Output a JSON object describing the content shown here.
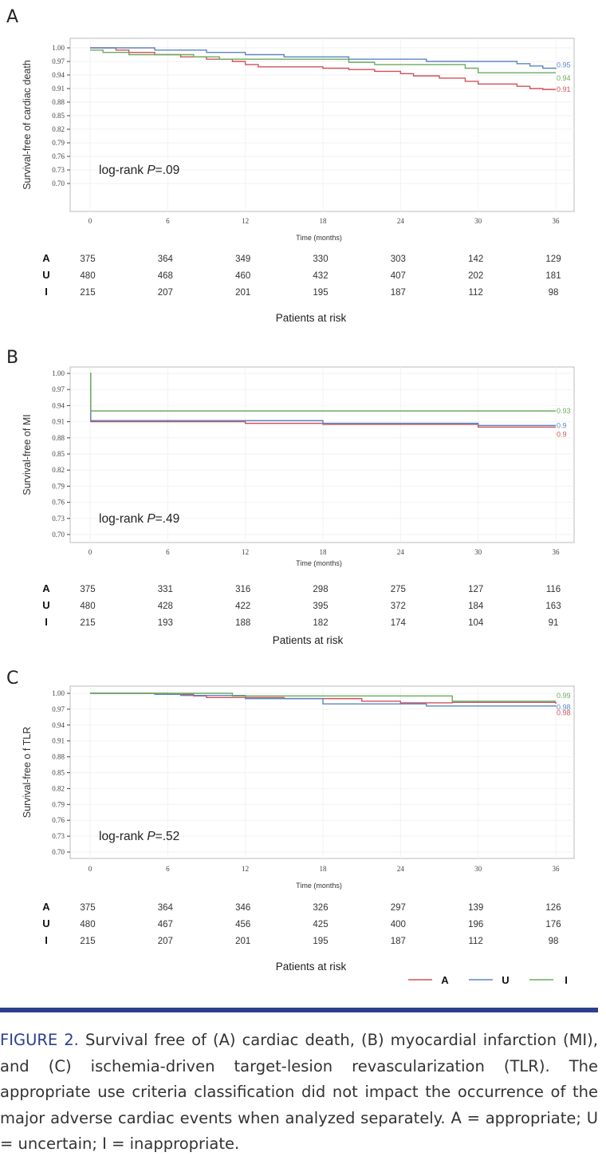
{
  "chart_data": [
    {
      "type": "line",
      "panel_label": "A",
      "ylabel": "Survival-free of cardiac death",
      "xlabel": "Time (months)",
      "annotation": "log-rank ",
      "annotation_p": "P",
      "annotation_value": "=.09",
      "ylim": [
        0.7,
        1.0
      ],
      "yticks": [
        "1.00",
        "0.97",
        "0.94",
        "0.91",
        "0.88",
        "0.85",
        "0.82",
        "0.79",
        "0.76",
        "0.73",
        "0.70"
      ],
      "xlim": [
        0,
        36
      ],
      "xticks": [
        "0",
        "6",
        "12",
        "18",
        "24",
        "30",
        "36"
      ],
      "series": [
        {
          "name": "A",
          "color": "#d0525a",
          "end_label": "0.91",
          "points": [
            [
              0,
              1
            ],
            [
              2,
              0.995
            ],
            [
              3,
              0.99
            ],
            [
              5,
              0.985
            ],
            [
              7,
              0.98
            ],
            [
              9,
              0.975
            ],
            [
              11,
              0.97
            ],
            [
              12,
              0.963
            ],
            [
              13,
              0.958
            ],
            [
              18,
              0.955
            ],
            [
              20,
              0.952
            ],
            [
              22,
              0.948
            ],
            [
              24,
              0.943
            ],
            [
              25,
              0.938
            ],
            [
              27,
              0.933
            ],
            [
              29,
              0.926
            ],
            [
              30,
              0.92
            ],
            [
              33,
              0.915
            ],
            [
              34,
              0.91
            ],
            [
              35,
              0.908
            ],
            [
              36,
              0.908
            ]
          ]
        },
        {
          "name": "U",
          "color": "#5b86c4",
          "end_label": "0.95",
          "points": [
            [
              0,
              1
            ],
            [
              5,
              0.995
            ],
            [
              9,
              0.99
            ],
            [
              12,
              0.985
            ],
            [
              15,
              0.98
            ],
            [
              20,
              0.975
            ],
            [
              26,
              0.97
            ],
            [
              33,
              0.965
            ],
            [
              34,
              0.96
            ],
            [
              35,
              0.955
            ],
            [
              36,
              0.953
            ]
          ]
        },
        {
          "name": "I",
          "color": "#6aab5e",
          "end_label": "0.94",
          "points": [
            [
              0,
              0.995
            ],
            [
              1,
              0.99
            ],
            [
              3,
              0.985
            ],
            [
              8,
              0.98
            ],
            [
              10,
              0.975
            ],
            [
              20,
              0.968
            ],
            [
              22,
              0.963
            ],
            [
              29,
              0.955
            ],
            [
              30,
              0.945
            ],
            [
              36,
              0.945
            ]
          ]
        }
      ],
      "risk_title": "Patients at risk",
      "risk": {
        "A": [
          "375",
          "364",
          "349",
          "330",
          "303",
          "142",
          "129"
        ],
        "U": [
          "480",
          "468",
          "460",
          "432",
          "407",
          "202",
          "181"
        ],
        "I": [
          "215",
          "207",
          "201",
          "195",
          "187",
          "112",
          "98"
        ]
      }
    },
    {
      "type": "line",
      "panel_label": "B",
      "ylabel": "Survival-free of  MI",
      "xlabel": "Time (months)",
      "annotation": "log-rank ",
      "annotation_p": "P",
      "annotation_value": "=.49",
      "ylim": [
        0.7,
        1.0
      ],
      "yticks": [
        "1.00",
        "0.97",
        "0.94",
        "0.91",
        "0.88",
        "0.85",
        "0.82",
        "0.79",
        "0.76",
        "0.73",
        "0.70"
      ],
      "xlim": [
        0,
        36
      ],
      "xticks": [
        "0",
        "6",
        "12",
        "18",
        "24",
        "30",
        "36"
      ],
      "series": [
        {
          "name": "A",
          "color": "#d0525a",
          "end_label": "0.9",
          "points": [
            [
              0,
              1
            ],
            [
              0.05,
              0.91
            ],
            [
              12,
              0.907
            ],
            [
              18,
              0.905
            ],
            [
              30,
              0.9
            ],
            [
              36,
              0.9
            ]
          ]
        },
        {
          "name": "U",
          "color": "#5b86c4",
          "end_label": "0.9",
          "points": [
            [
              0,
              1
            ],
            [
              0.05,
              0.912
            ],
            [
              18,
              0.907
            ],
            [
              30,
              0.903
            ],
            [
              36,
              0.903
            ]
          ]
        },
        {
          "name": "I",
          "color": "#6aab5e",
          "end_label": "0.93",
          "points": [
            [
              0,
              1
            ],
            [
              0.05,
              0.93
            ],
            [
              36,
              0.93
            ]
          ]
        }
      ],
      "risk_title": "Patients at risk",
      "risk": {
        "A": [
          "375",
          "331",
          "316",
          "298",
          "275",
          "127",
          "116"
        ],
        "U": [
          "480",
          "428",
          "422",
          "395",
          "372",
          "184",
          "163"
        ],
        "I": [
          "215",
          "193",
          "188",
          "182",
          "174",
          "104",
          "91"
        ]
      }
    },
    {
      "type": "line",
      "panel_label": "C",
      "ylabel": "Survival-free o f TLR",
      "xlabel": "Time (months)",
      "annotation": "log-rank ",
      "annotation_p": "P",
      "annotation_value": "=.52",
      "ylim": [
        0.7,
        1.0
      ],
      "yticks": [
        "1.00",
        "0.97",
        "0.94",
        "0.91",
        "0.88",
        "0.85",
        "0.82",
        "0.79",
        "0.76",
        "0.73",
        "0.70"
      ],
      "xlim": [
        0,
        36
      ],
      "xticks": [
        "0",
        "6",
        "12",
        "18",
        "24",
        "30",
        "36"
      ],
      "series": [
        {
          "name": "A",
          "color": "#d0525a",
          "end_label": "0.98",
          "points": [
            [
              0,
              1
            ],
            [
              6,
              0.998
            ],
            [
              8,
              0.995
            ],
            [
              9,
              0.992
            ],
            [
              15,
              0.99
            ],
            [
              21,
              0.985
            ],
            [
              24,
              0.982
            ],
            [
              28,
              0.983
            ],
            [
              36,
              0.98
            ]
          ]
        },
        {
          "name": "U",
          "color": "#5b86c4",
          "end_label": "0.98",
          "points": [
            [
              0,
              1
            ],
            [
              5,
              0.998
            ],
            [
              7,
              0.996
            ],
            [
              12,
              0.99
            ],
            [
              18,
              0.98
            ],
            [
              26,
              0.976
            ],
            [
              36,
              0.975
            ]
          ]
        },
        {
          "name": "I",
          "color": "#6aab5e",
          "end_label": "0.99",
          "points": [
            [
              0,
              1
            ],
            [
              11,
              0.995
            ],
            [
              28,
              0.985
            ],
            [
              36,
              0.985
            ]
          ]
        }
      ],
      "risk_title": "Patients at risk",
      "risk": {
        "A": [
          "375",
          "364",
          "346",
          "326",
          "297",
          "139",
          "126"
        ],
        "U": [
          "480",
          "467",
          "456",
          "425",
          "400",
          "196",
          "176"
        ],
        "I": [
          "215",
          "207",
          "201",
          "195",
          "187",
          "112",
          "98"
        ]
      }
    }
  ],
  "legend": [
    {
      "name": "A",
      "color": "#d0525a"
    },
    {
      "name": "U",
      "color": "#5b86c4"
    },
    {
      "name": "I",
      "color": "#6aab5e"
    }
  ],
  "caption": {
    "label": "FIGURE 2.",
    "text": " Survival free of (A) cardiac death, (B) myocardial infarction (MI), and (C) ischemia-driven target-lesion revascularization (TLR). The appropriate use criteria classification did not impact the occurrence of the major adverse cardiac events when analyzed separately. A = appropriate; U = uncertain; I = inappropriate."
  }
}
